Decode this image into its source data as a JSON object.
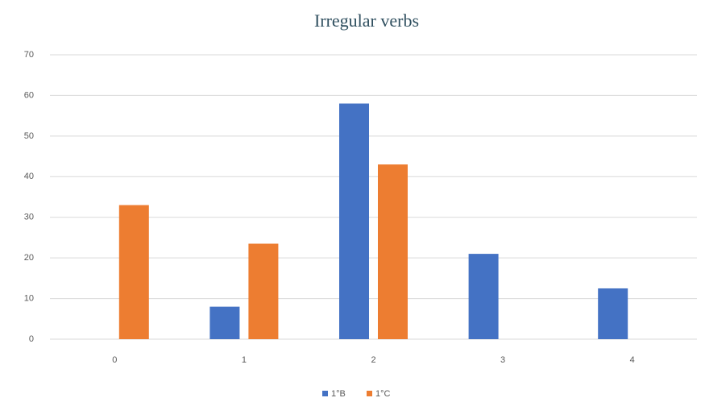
{
  "chart_data": {
    "type": "bar",
    "title": "Irregular verbs",
    "categories": [
      "0",
      "1",
      "2",
      "3",
      "4"
    ],
    "series": [
      {
        "name": "1°B",
        "color": "#4472c4",
        "values": [
          0,
          8,
          58,
          21,
          12.5
        ]
      },
      {
        "name": "1°C",
        "color": "#ed7d31",
        "values": [
          33,
          23.5,
          43,
          0,
          0
        ]
      }
    ],
    "ylim": [
      0,
      70
    ],
    "yticks": [
      0,
      10,
      20,
      30,
      40,
      50,
      60,
      70
    ],
    "grid": true,
    "legend": "bottom"
  }
}
